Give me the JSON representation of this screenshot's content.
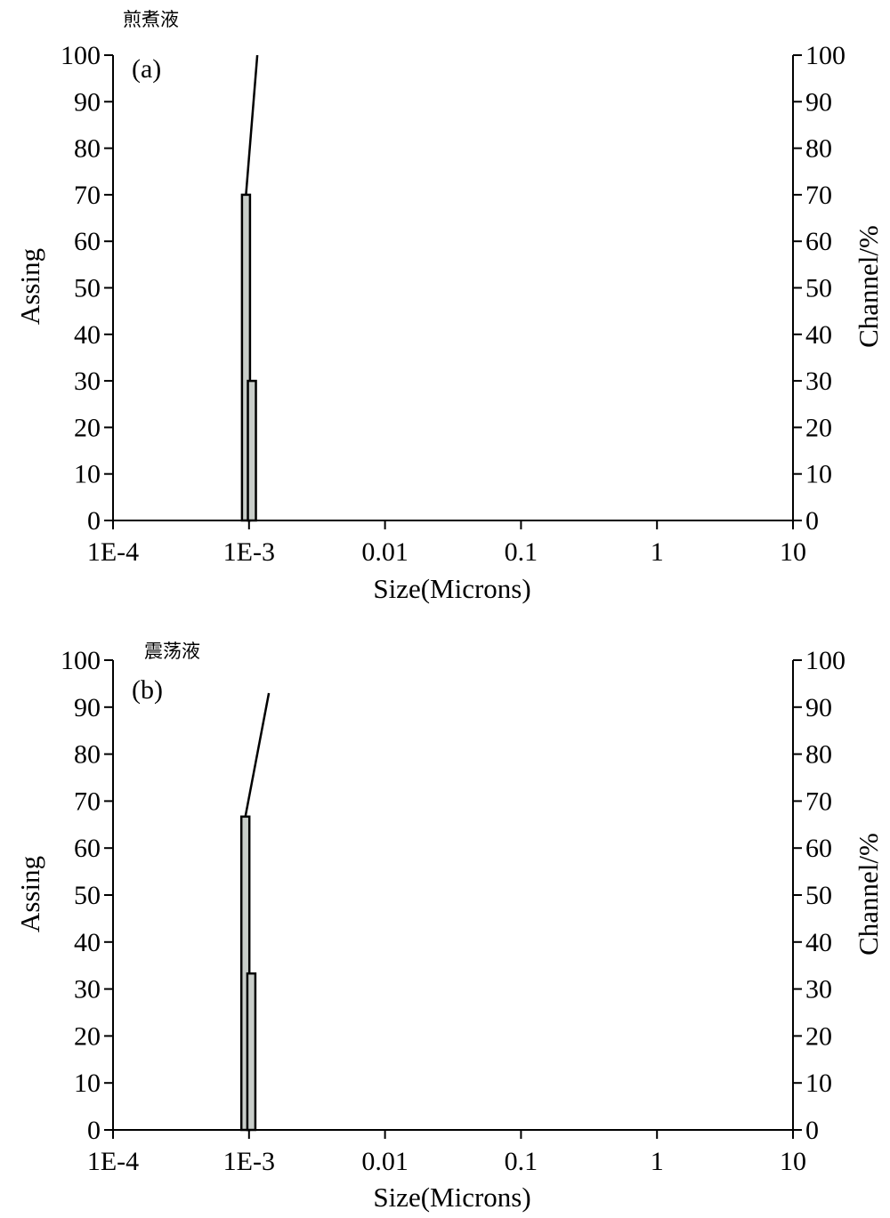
{
  "chart_data": [
    {
      "type": "bar",
      "panel_label": "(a)",
      "title": "煎煮液",
      "xlabel": "Size(Microns)",
      "ylabel": "Assing",
      "ylabel_right": "Channel/%",
      "x_scale": "log",
      "xlim": [
        0.0001,
        10
      ],
      "x_ticks": [
        "1E-4",
        "1E-3",
        "0.01",
        "0.1",
        "1",
        "10"
      ],
      "ylim": [
        0,
        100
      ],
      "y_ticks": [
        0,
        10,
        20,
        30,
        40,
        50,
        60,
        70,
        80,
        90,
        100
      ],
      "y2lim": [
        0,
        100
      ],
      "y2_ticks": [
        0,
        10,
        20,
        30,
        40,
        50,
        60,
        70,
        80,
        90,
        100
      ],
      "grid": false,
      "bars": [
        {
          "x": 0.00095,
          "value": 70
        },
        {
          "x": 0.00105,
          "value": 30
        }
      ],
      "line": {
        "x": [
          0.00095,
          0.00115
        ],
        "y": [
          70,
          100
        ]
      },
      "colors": {
        "bar_fill": "#c8cdc9",
        "line": "#000000"
      }
    },
    {
      "type": "bar",
      "panel_label": "(b)",
      "title": "震荡液",
      "xlabel": "Size(Microns)",
      "ylabel": "Assing",
      "ylabel_right": "Channel/%",
      "x_scale": "log",
      "xlim": [
        0.0001,
        10
      ],
      "x_ticks": [
        "1E-4",
        "1E-3",
        "0.01",
        "0.1",
        "1",
        "10"
      ],
      "ylim": [
        0,
        100
      ],
      "y_ticks": [
        0,
        10,
        20,
        30,
        40,
        50,
        60,
        70,
        80,
        90,
        100
      ],
      "y2lim": [
        0,
        100
      ],
      "y2_ticks": [
        0,
        10,
        20,
        30,
        40,
        50,
        60,
        70,
        80,
        90,
        100
      ],
      "grid": false,
      "bars": [
        {
          "x": 0.00094,
          "value": 66.7
        },
        {
          "x": 0.00104,
          "value": 33.3
        }
      ],
      "line": {
        "x": [
          0.00094,
          0.0014
        ],
        "y": [
          66.7,
          93
        ]
      },
      "colors": {
        "bar_fill": "#c8cdc9",
        "line": "#000000"
      }
    }
  ]
}
